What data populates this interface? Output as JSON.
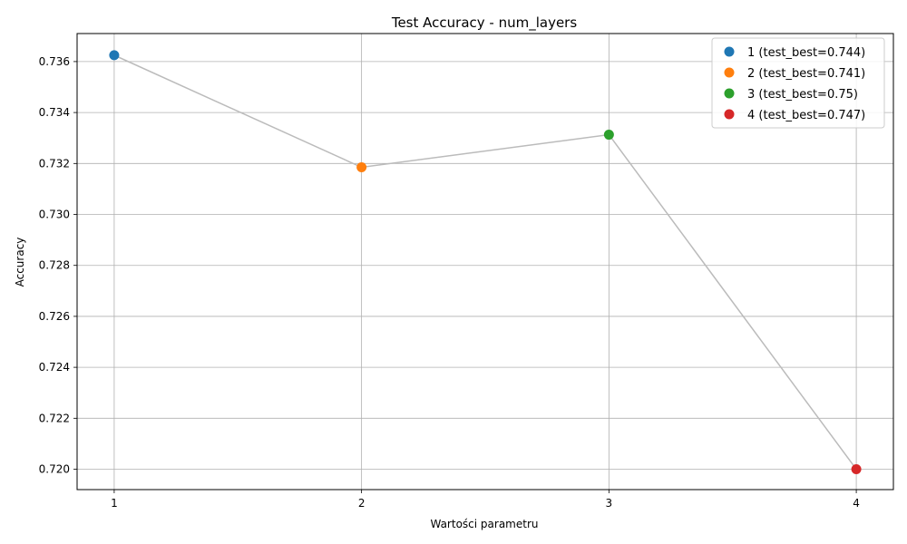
{
  "chart_data": {
    "type": "line",
    "title": "Test Accuracy - num_layers",
    "xlabel": "Wartości parametru",
    "ylabel": "Accuracy",
    "x": [
      1,
      2,
      3,
      4
    ],
    "x_tick_labels": [
      "1",
      "2",
      "3",
      "4"
    ],
    "y_ticks": [
      0.72,
      0.722,
      0.724,
      0.726,
      0.728,
      0.73,
      0.732,
      0.734,
      0.736
    ],
    "y_tick_labels": [
      "0.720",
      "0.722",
      "0.724",
      "0.726",
      "0.728",
      "0.730",
      "0.732",
      "0.734",
      "0.736"
    ],
    "xlim": [
      0.85,
      4.15
    ],
    "ylim": [
      0.7192,
      0.7371
    ],
    "grid": true,
    "legend_position": "top-right",
    "line_color": "#bbbbbb",
    "series": [
      {
        "name": "1 (test_best=0.744)",
        "x": 1,
        "value": 0.73625,
        "color": "#1f77b4"
      },
      {
        "name": "2 (test_best=0.741)",
        "x": 2,
        "value": 0.73185,
        "color": "#ff7f0e"
      },
      {
        "name": "3 (test_best=0.75)",
        "x": 3,
        "value": 0.73313,
        "color": "#2ca02c"
      },
      {
        "name": "4 (test_best=0.747)",
        "x": 4,
        "value": 0.72,
        "color": "#d62728"
      }
    ]
  }
}
